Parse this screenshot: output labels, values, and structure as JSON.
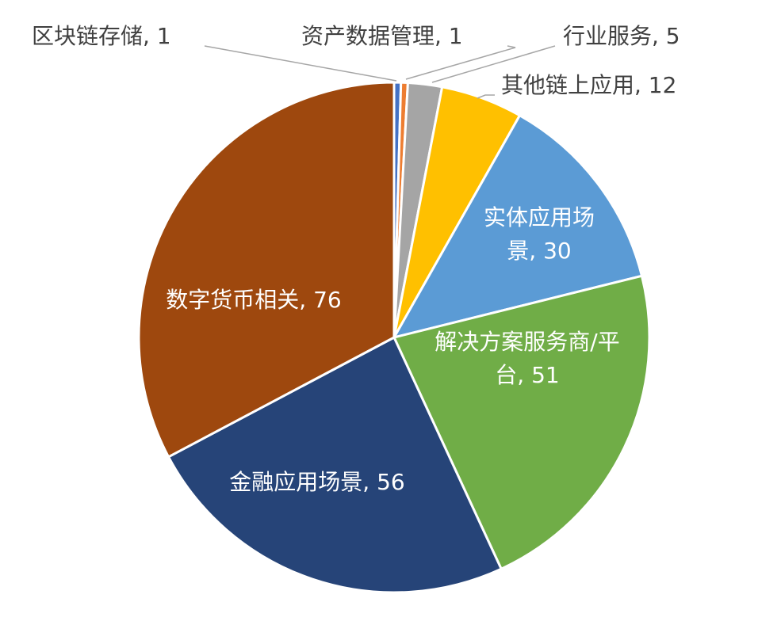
{
  "chart_data": {
    "type": "pie",
    "title": "",
    "slices": [
      {
        "name": "区块链存储",
        "value": 1,
        "text": "区块链存储, 1",
        "color": "#4472c4",
        "label_lines": [
          "区块链存储, 1"
        ]
      },
      {
        "name": "资产数据管理",
        "value": 1,
        "text": "资产数据管理, 1",
        "color": "#ed7d31",
        "label_lines": [
          "资产数据管理, 1"
        ]
      },
      {
        "name": "行业服务",
        "value": 5,
        "text": "行业服务, 5",
        "color": "#a5a5a5",
        "label_lines": [
          "行业服务, 5"
        ]
      },
      {
        "name": "其他链上应用",
        "value": 12,
        "text": "其他链上应用, 12",
        "color": "#ffc000",
        "label_lines": [
          "其他链上应用, 12"
        ]
      },
      {
        "name": "实体应用场景",
        "value": 30,
        "text": "实体应用场景, 30",
        "color": "#5b9bd5",
        "label_lines": [
          "实体应用场",
          "景, 30"
        ]
      },
      {
        "name": "解决方案服务商/平台",
        "value": 51,
        "text": "解决方案服务商/平台, 51",
        "color": "#70ad47",
        "label_lines": [
          "解决方案服务商/平",
          "台, 51"
        ]
      },
      {
        "name": "金融应用场景",
        "value": 56,
        "text": "金融应用场景, 56",
        "color": "#264478",
        "label_lines": [
          "金融应用场景, 56"
        ]
      },
      {
        "name": "数字货币相关",
        "value": 76,
        "text": "数字货币相关, 76",
        "color": "#9e480e",
        "label_lines": [
          "数字货币相关, 76"
        ]
      }
    ],
    "legend": "none"
  }
}
